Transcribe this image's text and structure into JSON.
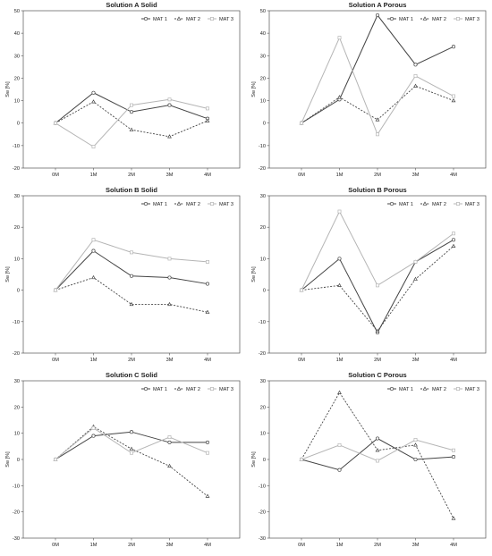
{
  "chart_data": [
    {
      "type": "line",
      "title": "Solution A Solid",
      "ylabel": "Sw [%]",
      "categories": [
        "0M",
        "1M",
        "2M",
        "3M",
        "4M"
      ],
      "ylim": [
        -20,
        50
      ],
      "yticks": [
        -20,
        -10,
        0,
        10,
        20,
        30,
        40,
        50
      ],
      "legend": "top-right",
      "series": [
        {
          "name": "MAT 1",
          "values": [
            0,
            13.5,
            5,
            8,
            2
          ]
        },
        {
          "name": "MAT 2",
          "values": [
            0,
            9.5,
            -3,
            -6,
            1
          ]
        },
        {
          "name": "MAT 3",
          "values": [
            0,
            -10.5,
            8,
            10.5,
            6.5
          ]
        }
      ]
    },
    {
      "type": "line",
      "title": "Solution A Porous",
      "ylabel": "Sw [%]",
      "categories": [
        "0M",
        "1M",
        "2M",
        "3M",
        "4M"
      ],
      "ylim": [
        -20,
        50
      ],
      "yticks": [
        -20,
        -10,
        0,
        10,
        20,
        30,
        40,
        50
      ],
      "legend": "top-right",
      "series": [
        {
          "name": "MAT 1",
          "values": [
            0,
            10.5,
            48,
            26,
            34
          ]
        },
        {
          "name": "MAT 2",
          "values": [
            0,
            11.5,
            1.5,
            16.5,
            10
          ]
        },
        {
          "name": "MAT 3",
          "values": [
            0,
            38,
            -5,
            21,
            12
          ]
        }
      ]
    },
    {
      "type": "line",
      "title": "Solution B Solid",
      "ylabel": "Sw [%]",
      "categories": [
        "0M",
        "1M",
        "2M",
        "3M",
        "4M"
      ],
      "ylim": [
        -20,
        30
      ],
      "yticks": [
        -20,
        -10,
        0,
        10,
        20,
        30
      ],
      "legend": "top-right",
      "series": [
        {
          "name": "MAT 1",
          "values": [
            0,
            12.5,
            4.5,
            4,
            2
          ]
        },
        {
          "name": "MAT 2",
          "values": [
            0,
            4,
            -4.5,
            -4.5,
            -7
          ]
        },
        {
          "name": "MAT 3",
          "values": [
            0,
            16,
            12,
            10,
            9
          ]
        }
      ]
    },
    {
      "type": "line",
      "title": "Solution B Porous",
      "ylabel": "Sw [%]",
      "categories": [
        "0M",
        "1M",
        "2M",
        "3M",
        "4M"
      ],
      "ylim": [
        -20,
        30
      ],
      "yticks": [
        -20,
        -10,
        0,
        10,
        20,
        30
      ],
      "legend": "top-right",
      "series": [
        {
          "name": "MAT 1",
          "values": [
            0,
            10,
            -13.5,
            9,
            16
          ]
        },
        {
          "name": "MAT 2",
          "values": [
            0,
            1.5,
            -13,
            3.5,
            14
          ]
        },
        {
          "name": "MAT 3",
          "values": [
            0,
            25,
            1.5,
            9,
            18
          ]
        }
      ]
    },
    {
      "type": "line",
      "title": "Solution C Solid",
      "ylabel": "Sw [%]",
      "categories": [
        "0M",
        "1M",
        "2M",
        "3M",
        "4M"
      ],
      "ylim": [
        -30,
        30
      ],
      "yticks": [
        -30,
        -20,
        -10,
        0,
        10,
        20,
        30
      ],
      "legend": "top-right",
      "series": [
        {
          "name": "MAT 1",
          "values": [
            0,
            9,
            10.5,
            6.5,
            6.5
          ]
        },
        {
          "name": "MAT 2",
          "values": [
            0,
            12.5,
            4,
            -2.5,
            -14
          ]
        },
        {
          "name": "MAT 3",
          "values": [
            0,
            12,
            2.5,
            8.5,
            2.5
          ]
        }
      ]
    },
    {
      "type": "line",
      "title": "Solution C Porous",
      "ylabel": "Sw [%]",
      "categories": [
        "0M",
        "1M",
        "2M",
        "3M",
        "4M"
      ],
      "ylim": [
        -30,
        30
      ],
      "yticks": [
        -30,
        -20,
        -10,
        0,
        10,
        20,
        30
      ],
      "legend": "top-right",
      "series": [
        {
          "name": "MAT 1",
          "values": [
            0,
            -4,
            8,
            0,
            1
          ]
        },
        {
          "name": "MAT 2",
          "values": [
            0,
            25.5,
            3.5,
            5.5,
            -22.5
          ]
        },
        {
          "name": "MAT 3",
          "values": [
            0,
            5.5,
            -0.5,
            7.5,
            3.5
          ]
        }
      ]
    }
  ]
}
